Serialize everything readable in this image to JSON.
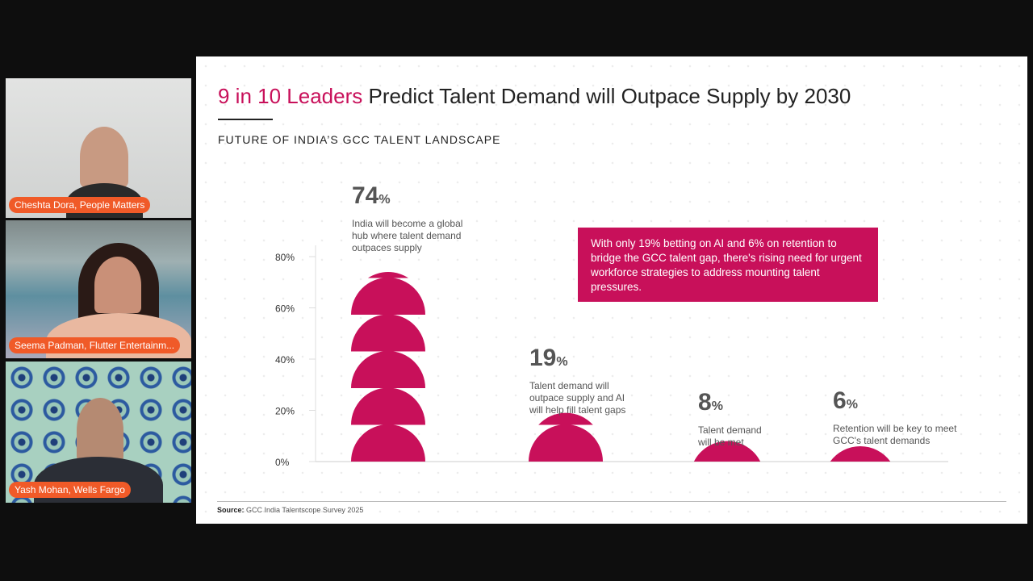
{
  "participants": [
    {
      "name": "Cheshta Dora, People Matters"
    },
    {
      "name": "Seema Padman, Flutter Entertainm..."
    },
    {
      "name": "Yash Mohan, Wells Fargo"
    }
  ],
  "slide": {
    "title_highlight": "9 in 10 Leaders",
    "title_rest": " Predict Talent Demand will Outpace Supply by 2030",
    "subtitle": "FUTURE OF INDIA’S GCC TALENT LANDSCAPE",
    "callout": "With only 19% betting on AI and 6% on retention to bridge the GCC talent gap, there's rising need for urgent workforce strategies to address mounting talent pressures.",
    "source_label": "Source:",
    "source_text": " GCC India Talentscope Survey 2025",
    "accent_color": "#c8105a"
  },
  "chart_data": {
    "type": "bar",
    "ylim": [
      0,
      80
    ],
    "yticks": [
      "0%",
      "20%",
      "40%",
      "60%",
      "80%"
    ],
    "grid": false,
    "categories": [
      "India will become a global hub where talent demand outpaces supply",
      "Talent demand will outpace supply and AI will help fill talent gaps",
      "Talent demand will be met",
      "Retention will be key to meet GCC's talent demands"
    ],
    "values": [
      74,
      19,
      8,
      6
    ],
    "value_labels": [
      "74",
      "19",
      "8",
      "6"
    ],
    "unit": "%",
    "desc_lines": [
      [
        "India will become a global",
        "hub where talent demand",
        "outpaces supply"
      ],
      [
        "Talent demand will",
        "outpace supply and AI",
        "will help fill talent gaps"
      ],
      [
        "Talent demand",
        "will be met"
      ],
      [
        "Retention will be key to meet",
        "GCC's talent demands"
      ]
    ]
  }
}
